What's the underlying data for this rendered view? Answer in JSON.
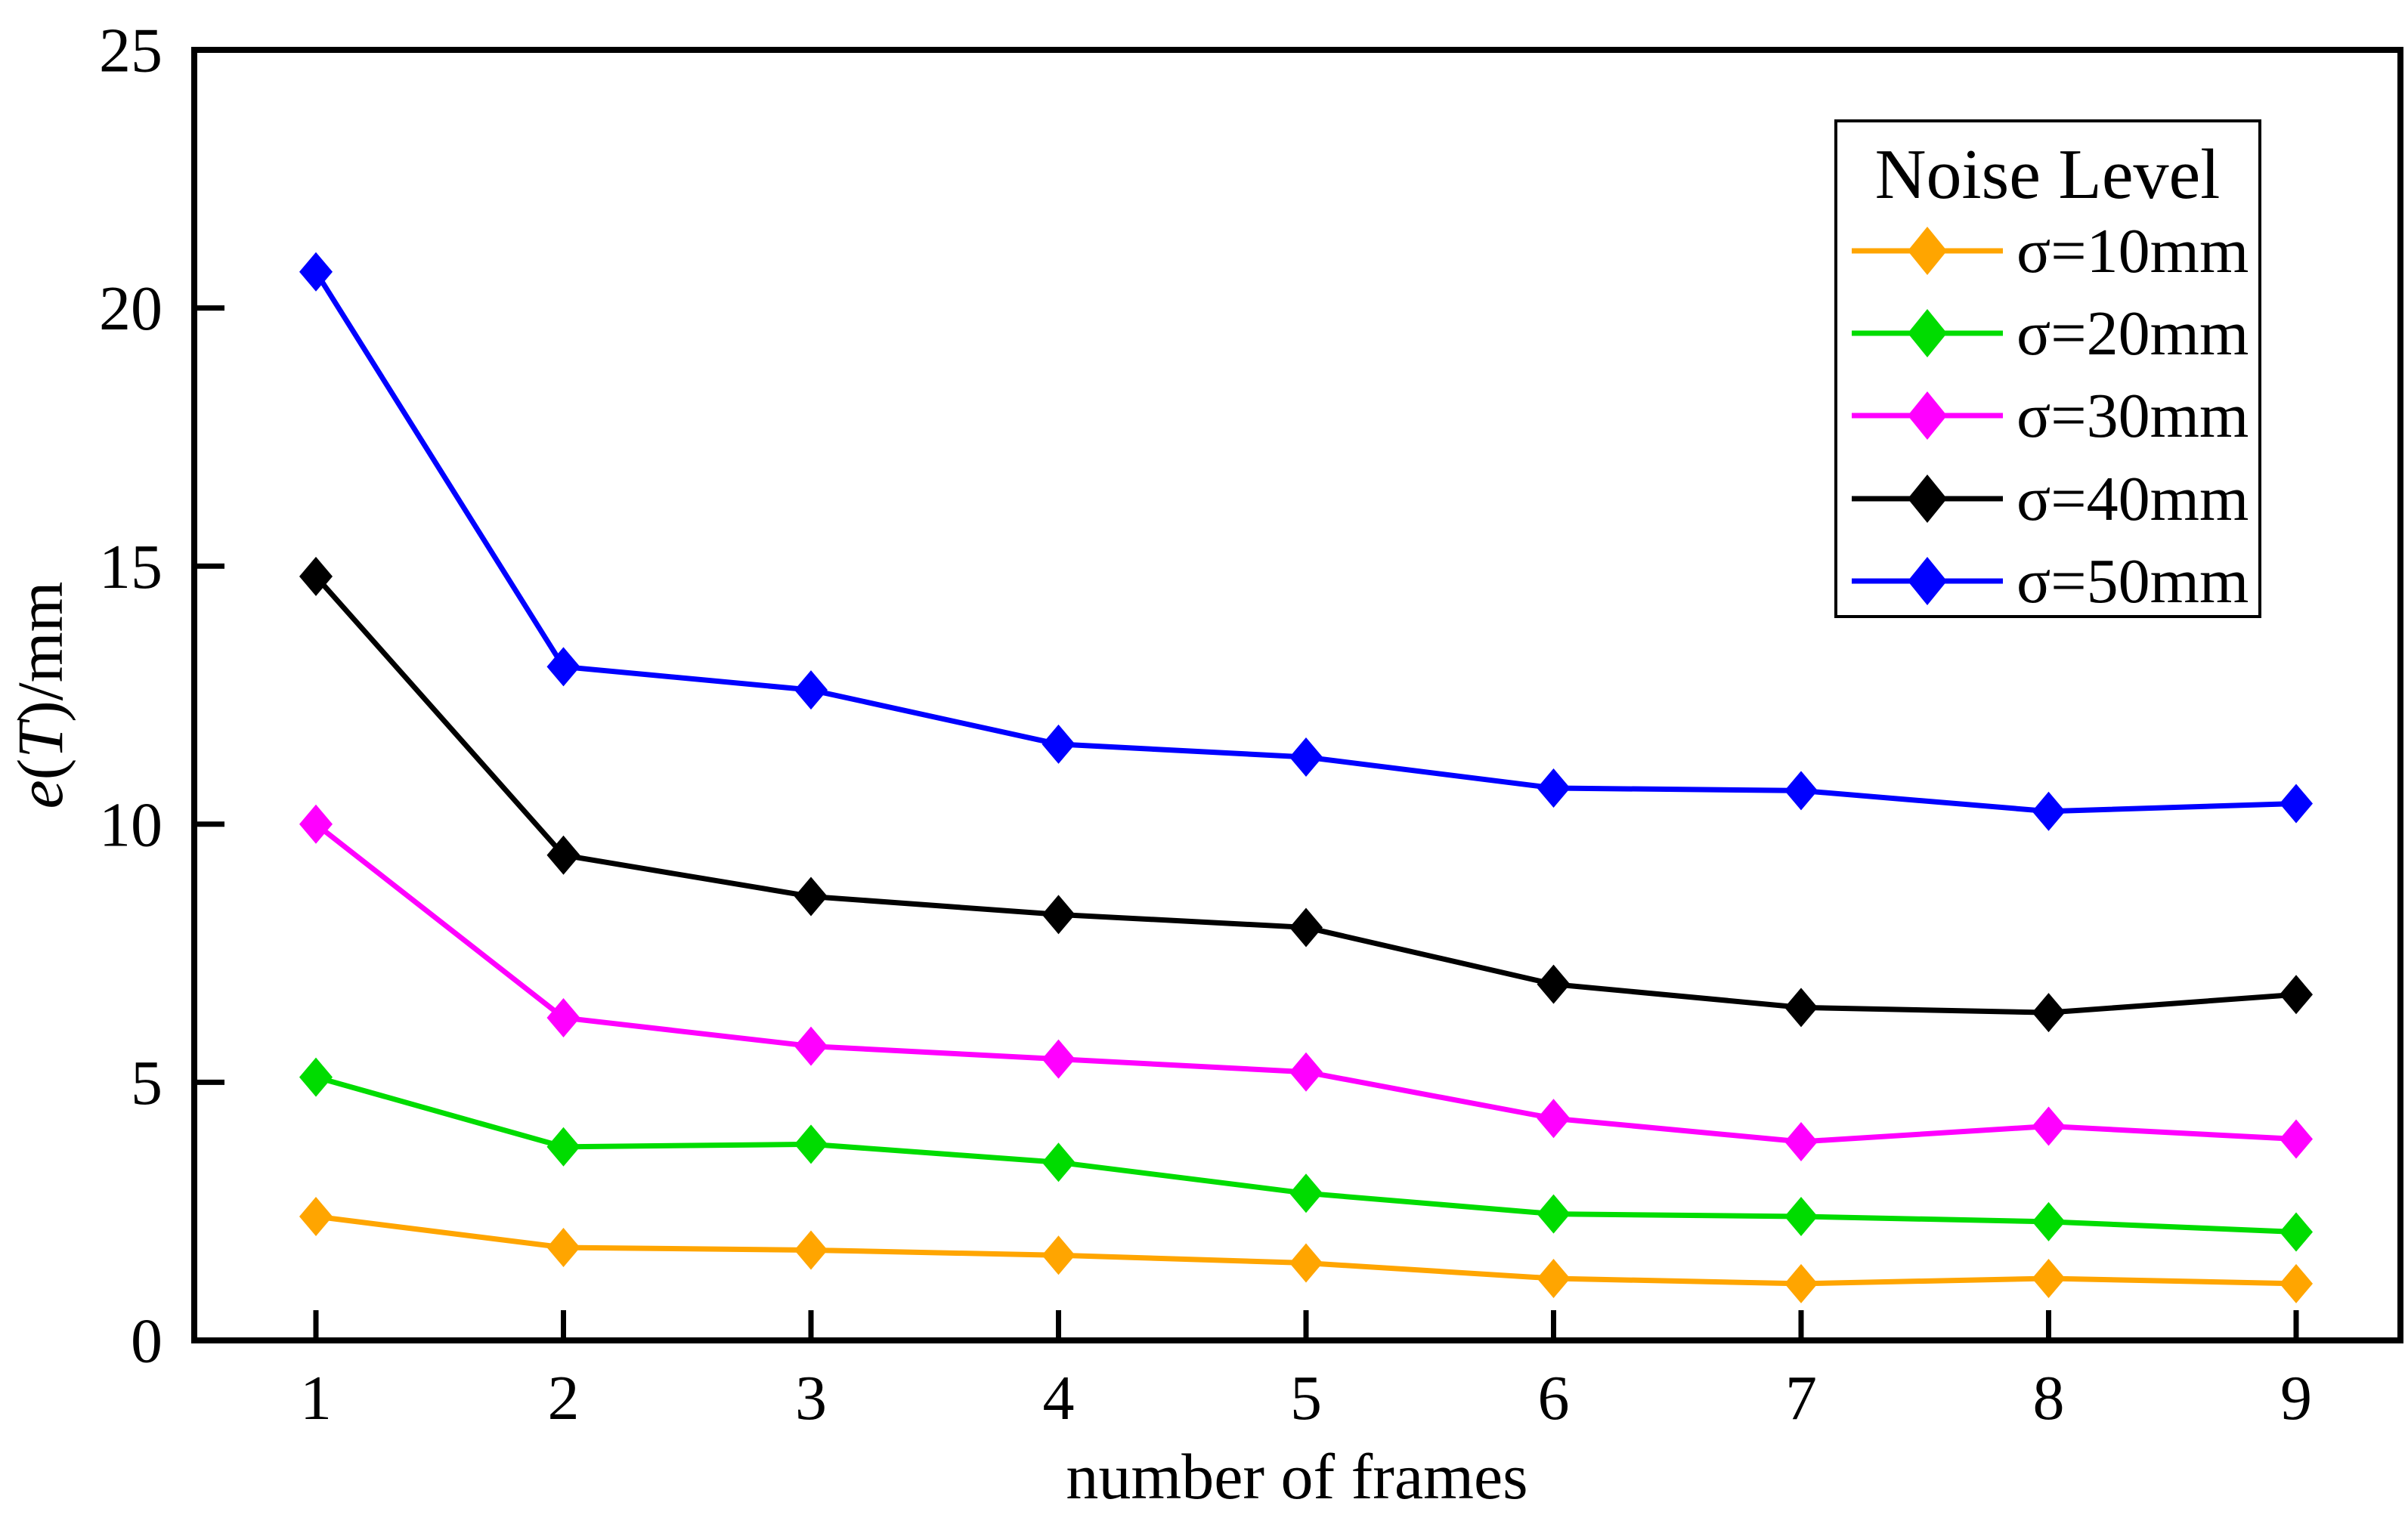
{
  "chart_data": {
    "type": "line",
    "title": "",
    "xlabel": "number of frames",
    "ylabel": "e(T)/mm",
    "ylabel_parts": {
      "p1": "e",
      "p2": "(",
      "p3": "T",
      "p4": ")/mm"
    },
    "x": [
      1,
      2,
      3,
      4,
      5,
      6,
      7,
      8,
      9
    ],
    "xticks": [
      1,
      2,
      3,
      4,
      5,
      6,
      7,
      8,
      9
    ],
    "yticks": [
      0,
      5,
      10,
      15,
      20,
      25
    ],
    "xlim": [
      0.51,
      9.42
    ],
    "ylim": [
      0,
      25
    ],
    "grid": false,
    "legend_title": "Noise Level",
    "legend_position": "top-right",
    "background_color": "#ffffff",
    "axis_color": "#000000",
    "marker": "diamond",
    "series": [
      {
        "name": "σ=10mm",
        "color": "#FFA500",
        "values": [
          2.4,
          1.8,
          1.75,
          1.65,
          1.5,
          1.2,
          1.1,
          1.2,
          1.1
        ]
      },
      {
        "name": "σ=20mm",
        "color": "#00DC00",
        "values": [
          5.1,
          3.75,
          3.8,
          3.45,
          2.85,
          2.45,
          2.4,
          2.3,
          2.1
        ]
      },
      {
        "name": "σ=30mm",
        "color": "#FF00FF",
        "values": [
          10.0,
          6.25,
          5.7,
          5.45,
          5.2,
          4.3,
          3.85,
          4.15,
          3.9
        ]
      },
      {
        "name": "σ=40mm",
        "color": "#000000",
        "values": [
          14.8,
          9.4,
          8.6,
          8.25,
          8.0,
          6.9,
          6.45,
          6.35,
          6.7
        ]
      },
      {
        "name": "σ=50mm",
        "color": "#0000FF",
        "values": [
          20.7,
          13.05,
          12.6,
          11.55,
          11.3,
          10.7,
          10.65,
          10.25,
          10.4
        ]
      }
    ]
  }
}
